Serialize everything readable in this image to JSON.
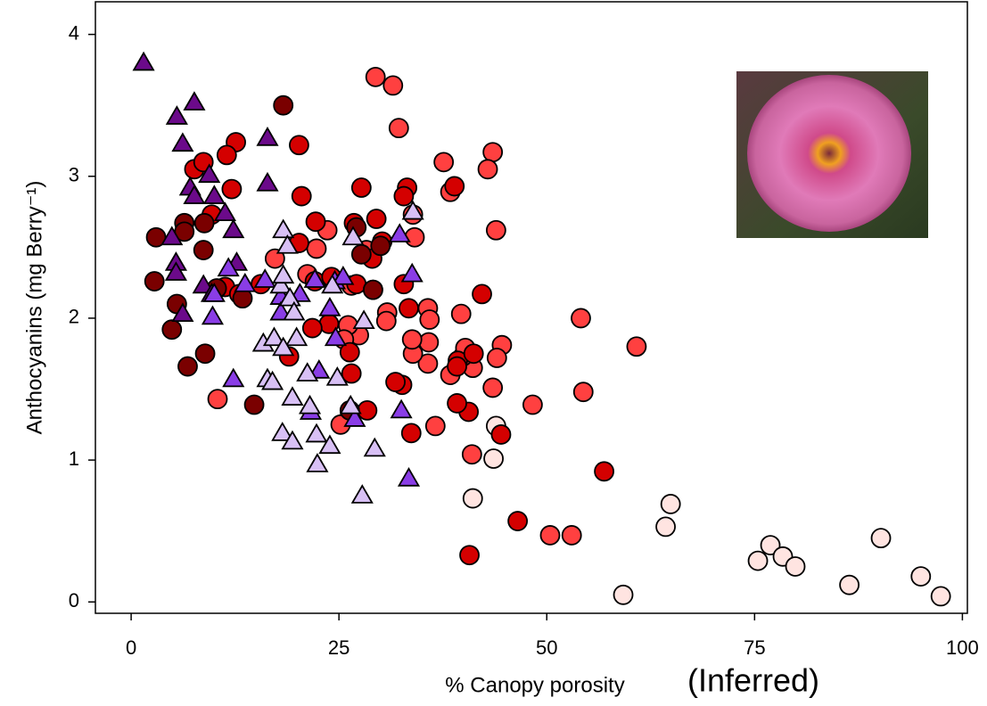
{
  "chart_data": {
    "type": "scatter",
    "xlabel": "% Canopy porosity",
    "annotation": "(Inferred)",
    "ylabel": "Anthocyanins (mg Berry⁻¹)",
    "xlim": [
      -4.3,
      100.6
    ],
    "ylim": [
      -0.08,
      4.23
    ],
    "xticks": [
      0,
      25,
      50,
      75,
      100
    ],
    "yticks": [
      0,
      1,
      2,
      3,
      4
    ],
    "grid": false,
    "series": [
      {
        "marker": "circle",
        "color": "#ffe4e1",
        "x": [
          59.2,
          64.9,
          64.3,
          75.4,
          76.9,
          78.4,
          79.9,
          86.4,
          90.2,
          95,
          97.4,
          41.1,
          43.6,
          43.9
        ],
        "values": [
          0.05,
          0.69,
          0.53,
          0.29,
          0.4,
          0.32,
          0.25,
          0.12,
          0.45,
          0.18,
          0.04,
          0.73,
          1.01,
          1.24
        ]
      },
      {
        "marker": "circle",
        "color": "#ff4040",
        "x": [
          29.4,
          31.5,
          32.2,
          43.5,
          42.9,
          43.9,
          37.6,
          38.4,
          54.1,
          60.8,
          54.4,
          48.3,
          50.4,
          53,
          41,
          44.6,
          44,
          43.5,
          39.7,
          36.6,
          35.7,
          35.8,
          33.9,
          35.7,
          41.1,
          35.9,
          33.8,
          30.8,
          30.7,
          27.4,
          26.1,
          25.6,
          28.3,
          34.1,
          33.9,
          23.6,
          22.3,
          21.2,
          17.3,
          26.5,
          24.1,
          25.2,
          10.4,
          39.9,
          38.4,
          40.2
        ],
        "values": [
          3.7,
          3.64,
          3.34,
          3.17,
          3.05,
          2.62,
          3.1,
          2.89,
          2,
          1.8,
          1.48,
          1.39,
          0.47,
          0.47,
          1.04,
          1.81,
          1.72,
          1.51,
          2.03,
          1.24,
          1.68,
          1.83,
          1.75,
          2.07,
          1.65,
          1.99,
          1.85,
          2.04,
          1.98,
          1.88,
          1.95,
          1.85,
          2.48,
          2.57,
          2.73,
          2.62,
          2.49,
          2.31,
          2.42,
          2.23,
          2.28,
          1.25,
          1.43,
          1.73,
          1.6,
          1.79
        ]
      },
      {
        "marker": "circle",
        "color": "#d40000",
        "x": [
          46.5,
          40.7,
          56.9,
          44.5,
          40.6,
          39.3,
          39.2,
          39.2,
          41.2,
          42.2,
          38.9,
          27.7,
          26.8,
          33.2,
          32.8,
          29.5,
          33.4,
          32.8,
          33.7,
          32.6,
          31.8,
          28.4,
          26.5,
          26.3,
          23.8,
          21.8,
          19,
          20.2,
          22.2,
          20.5,
          20.2,
          12.6,
          11.5,
          12.1,
          7.6,
          8.7,
          9.7,
          11.3,
          13,
          15.6,
          22.1,
          24.1,
          29,
          30.2,
          27.1,
          29.1
        ],
        "values": [
          0.57,
          0.33,
          0.92,
          1.18,
          1.34,
          1.7,
          1.4,
          1.66,
          1.75,
          2.17,
          2.93,
          2.92,
          2.67,
          2.92,
          2.86,
          2.7,
          2.07,
          2.24,
          1.19,
          1.53,
          1.55,
          1.35,
          1.61,
          1.76,
          1.96,
          1.93,
          1.73,
          2.53,
          2.68,
          2.86,
          3.22,
          3.24,
          3.15,
          2.91,
          3.05,
          3.1,
          2.73,
          2.22,
          2.17,
          2.24,
          2.26,
          2.29,
          2.42,
          2.54,
          2.24,
          2.2
        ]
      },
      {
        "marker": "circle",
        "color": "#7a0000",
        "x": [
          18.3,
          3,
          2.8,
          4.9,
          5.5,
          6.8,
          8.9,
          8.7,
          6.4,
          14.8,
          13.4,
          10.3,
          6.4,
          8.8,
          27.7,
          27.1,
          30,
          29.1,
          26.3
        ],
        "values": [
          3.5,
          2.57,
          2.26,
          1.92,
          2.1,
          1.66,
          1.75,
          2.48,
          2.67,
          1.39,
          2.14,
          2.21,
          2.61,
          2.67,
          2.45,
          2.64,
          2.51,
          2.2,
          1.35
        ]
      },
      {
        "marker": "triangle",
        "color": "#6b0a8a",
        "x": [
          1.5,
          5.5,
          7.6,
          6.2,
          4.9,
          5.4,
          5.4,
          6.2,
          7.1,
          7.6,
          9.4,
          10,
          11.3,
          12.3,
          16.4,
          16.4,
          12.7,
          8.7,
          9.7
        ],
        "values": [
          3.8,
          3.42,
          3.52,
          3.23,
          2.57,
          2.39,
          2.32,
          2.03,
          2.92,
          2.86,
          3.01,
          2.86,
          2.74,
          2.62,
          3.27,
          2.95,
          2.39,
          2.23,
          2.17
        ]
      },
      {
        "marker": "triangle",
        "color": "#8a3de6",
        "x": [
          12.3,
          9.8,
          10,
          11.7,
          13.7,
          16.1,
          18,
          18,
          20.3,
          22.1,
          24.5,
          25.5,
          24.6,
          26.9,
          32.5,
          33.4,
          32.3,
          33.8,
          23.9,
          21.6,
          22.6
        ],
        "values": [
          1.57,
          2.01,
          2.17,
          2.35,
          2.24,
          2.27,
          2.15,
          2.04,
          2.17,
          2.27,
          2.26,
          2.29,
          1.86,
          1.29,
          1.35,
          0.87,
          2.59,
          2.31,
          2.07,
          1.34,
          1.63
        ]
      },
      {
        "marker": "triangle",
        "color": "#d8c0f5",
        "x": [
          18.3,
          18.8,
          18,
          19.1,
          19.9,
          19.6,
          15.9,
          17.2,
          16.4,
          17,
          18.3,
          21.2,
          21.5,
          19.4,
          18.2,
          19.4,
          22.3,
          23.9,
          22.4,
          24.8,
          26.4,
          29.3,
          27.8,
          26.7,
          28,
          24.2,
          33.9,
          18.3
        ],
        "values": [
          2.62,
          2.51,
          2.23,
          2.14,
          1.86,
          2.04,
          1.82,
          1.86,
          1.57,
          1.55,
          1.79,
          1.61,
          1.38,
          1.44,
          1.19,
          1.13,
          1.18,
          1.1,
          0.97,
          1.58,
          1.38,
          1.08,
          0.75,
          2.57,
          1.98,
          2.23,
          2.75,
          2.3
        ]
      }
    ]
  }
}
